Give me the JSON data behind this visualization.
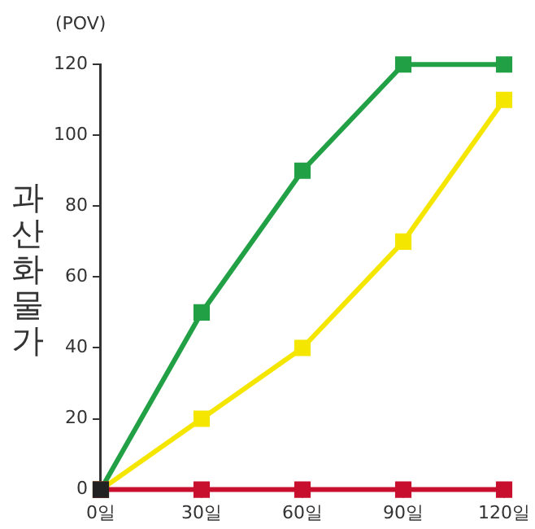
{
  "chart_data": {
    "type": "line",
    "ylabel": "과산화물가",
    "annotations": [
      "(POV)"
    ],
    "categories": [
      "0일",
      "30일",
      "60일",
      "90일",
      "120일"
    ],
    "series": [
      {
        "color": "#22a045",
        "values": [
          0,
          50,
          90,
          120,
          120
        ]
      },
      {
        "color": "#f5e600",
        "values": [
          0,
          20,
          40,
          70,
          110
        ]
      },
      {
        "color": "#c8102e",
        "values": [
          0,
          0,
          0,
          0,
          0
        ]
      },
      {
        "color": "#222222",
        "values": [
          0,
          null,
          null,
          null,
          null
        ]
      }
    ],
    "ylim": [
      0,
      120
    ],
    "yticks": [
      0,
      20,
      40,
      60,
      80,
      100,
      120
    ],
    "grid": false,
    "legend": false,
    "marker": "square",
    "line_style": "solid"
  }
}
